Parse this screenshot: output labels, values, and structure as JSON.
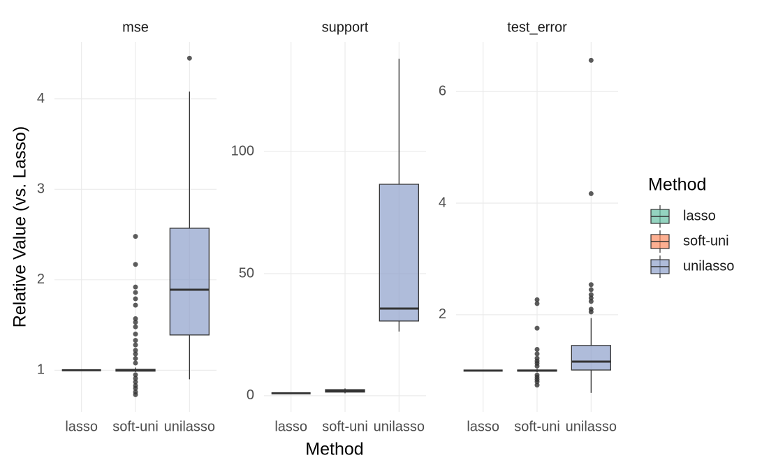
{
  "labels": {
    "x": "Method",
    "y": "Relative Value (vs. Lasso)",
    "legend_title": "Method",
    "legend_position": "right"
  },
  "chart_data": [
    {
      "type": "box",
      "title": "mse",
      "categories": [
        "lasso",
        "soft-uni",
        "unilasso"
      ],
      "ylim": [
        0.54,
        4.63
      ],
      "yticks": [
        1,
        2,
        3,
        4
      ],
      "grid": true,
      "series": [
        {
          "name": "lasso",
          "color": "#66c2a5",
          "whislo": 1,
          "q1": 1,
          "median": 1,
          "q3": 1,
          "whishi": 1,
          "outliers": []
        },
        {
          "name": "soft-uni",
          "color": "#fc8d62",
          "whislo": 0.98,
          "q1": 0.99,
          "median": 1,
          "q3": 1.01,
          "whishi": 1.03,
          "outliers": [
            2.48,
            2.17,
            1.92,
            1.86,
            1.79,
            1.72,
            1.57,
            1.53,
            1.48,
            1.4,
            1.33,
            1.28,
            1.22,
            1.18,
            1.13,
            1.08,
            0.95,
            0.91,
            0.87,
            0.83,
            0.8,
            0.76,
            0.73
          ]
        },
        {
          "name": "unilasso",
          "color": "#8da0cb",
          "whislo": 0.9,
          "q1": 1.39,
          "median": 1.89,
          "q3": 2.57,
          "whishi": 4.08,
          "outliers": [
            4.45
          ]
        }
      ]
    },
    {
      "type": "box",
      "title": "support",
      "categories": [
        "lasso",
        "soft-uni",
        "unilasso"
      ],
      "ylim": [
        -6.6,
        144.9
      ],
      "yticks": [
        0,
        50,
        100
      ],
      "grid": true,
      "series": [
        {
          "name": "lasso",
          "color": "#66c2a5",
          "whislo": 1,
          "q1": 1,
          "median": 1,
          "q3": 1,
          "whishi": 1,
          "outliers": []
        },
        {
          "name": "soft-uni",
          "color": "#fc8d62",
          "whislo": 1,
          "q1": 1.5,
          "median": 2,
          "q3": 2.5,
          "whishi": 3,
          "outliers": []
        },
        {
          "name": "unilasso",
          "color": "#8da0cb",
          "whislo": 26.3,
          "q1": 30.6,
          "median": 35.7,
          "q3": 86.6,
          "whishi": 138,
          "outliers": []
        }
      ]
    },
    {
      "type": "box",
      "title": "test_error",
      "categories": [
        "lasso",
        "soft-uni",
        "unilasso"
      ],
      "ylim": [
        0.26,
        6.89
      ],
      "yticks": [
        2,
        4,
        6
      ],
      "grid": true,
      "series": [
        {
          "name": "lasso",
          "color": "#66c2a5",
          "whislo": 1,
          "q1": 1,
          "median": 1,
          "q3": 1,
          "whishi": 1,
          "outliers": []
        },
        {
          "name": "soft-uni",
          "color": "#fc8d62",
          "whislo": 0.97,
          "q1": 0.99,
          "median": 1,
          "q3": 1.01,
          "whishi": 1.03,
          "outliers": [
            2.27,
            2.2,
            1.76,
            1.38,
            1.3,
            1.22,
            1.17,
            1.13,
            1.08,
            0.92,
            0.88,
            0.84,
            0.8,
            0.74
          ]
        },
        {
          "name": "unilasso",
          "color": "#8da0cb",
          "whislo": 0.6,
          "q1": 1.01,
          "median": 1.16,
          "q3": 1.45,
          "whishi": 1.94,
          "outliers": [
            6.56,
            4.17,
            2.54,
            2.45,
            2.36,
            2.3,
            2.24,
            2.1,
            2.05
          ]
        }
      ]
    }
  ]
}
